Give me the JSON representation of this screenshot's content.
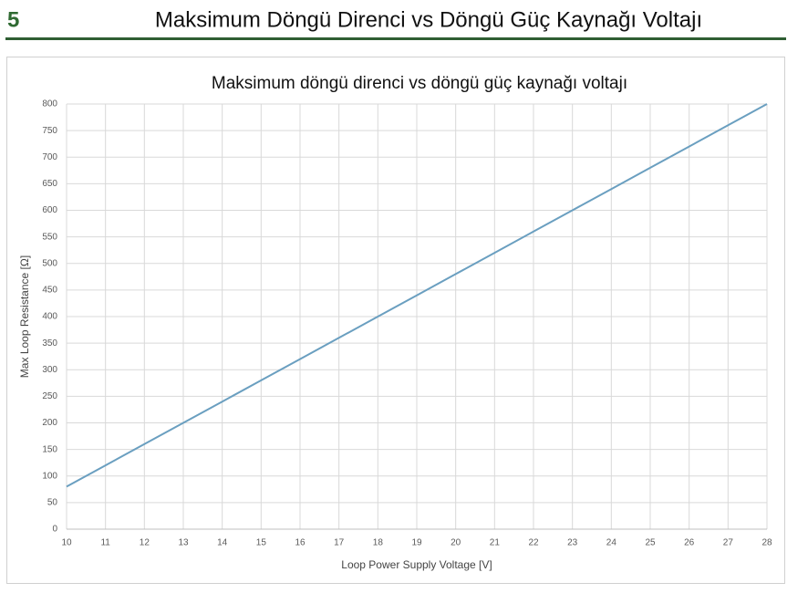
{
  "header": {
    "number": "5",
    "title": "Maksimum Döngü Direnci vs Döngü Güç Kaynağı Voltajı"
  },
  "chart_data": {
    "type": "line",
    "title": "Maksimum döngü direnci vs döngü güç kaynağı voltajı",
    "x_label": "Loop Power Supply Voltage [V]",
    "y_label": "Max Loop Resistance [Ω]",
    "x": [
      10,
      11,
      12,
      13,
      14,
      15,
      16,
      17,
      18,
      19,
      20,
      21,
      22,
      23,
      24,
      25,
      26,
      27,
      28
    ],
    "series": [
      {
        "name": "Max Loop Resistance",
        "color": "#6a9fc0",
        "values": [
          80,
          120,
          160,
          200,
          240,
          280,
          320,
          360,
          400,
          440,
          480,
          520,
          560,
          600,
          640,
          680,
          720,
          760,
          800
        ]
      }
    ],
    "xlim": [
      10,
      28
    ],
    "xticks": [
      10,
      11,
      12,
      13,
      14,
      15,
      16,
      17,
      18,
      19,
      20,
      21,
      22,
      23,
      24,
      25,
      26,
      27,
      28
    ],
    "ylim": [
      0,
      800
    ],
    "yticks": [
      0,
      50,
      100,
      150,
      200,
      250,
      300,
      350,
      400,
      450,
      500,
      550,
      600,
      650,
      700,
      750,
      800
    ],
    "grid": true
  }
}
